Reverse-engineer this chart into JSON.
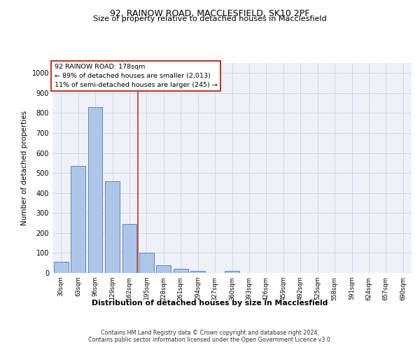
{
  "title_line1": "92, RAINOW ROAD, MACCLESFIELD, SK10 2PF",
  "title_line2": "Size of property relative to detached houses in Macclesfield",
  "xlabel": "Distribution of detached houses by size in Macclesfield",
  "ylabel": "Number of detached properties",
  "footnote1": "Contains HM Land Registry data © Crown copyright and database right 2024.",
  "footnote2": "Contains public sector information licensed under the Open Government Licence v3.0.",
  "annotation_line1": "92 RAINOW ROAD: 178sqm",
  "annotation_line2": "← 89% of detached houses are smaller (2,013)",
  "annotation_line3": "11% of semi-detached houses are larger (245) →",
  "bar_color": "#aec6e8",
  "bar_edge_color": "#4a7ab5",
  "vline_color": "#c0392b",
  "annotation_box_color": "#c0392b",
  "grid_color": "#d0d8e8",
  "background_color": "#eef2f8",
  "categories": [
    "30sqm",
    "63sqm",
    "96sqm",
    "129sqm",
    "162sqm",
    "195sqm",
    "228sqm",
    "261sqm",
    "294sqm",
    "327sqm",
    "360sqm",
    "393sqm",
    "426sqm",
    "459sqm",
    "492sqm",
    "525sqm",
    "558sqm",
    "591sqm",
    "624sqm",
    "657sqm",
    "690sqm"
  ],
  "values": [
    55,
    535,
    830,
    460,
    245,
    100,
    40,
    22,
    10,
    0,
    12,
    0,
    0,
    0,
    0,
    0,
    0,
    0,
    0,
    0,
    0
  ],
  "ylim": [
    0,
    1050
  ],
  "yticks": [
    0,
    100,
    200,
    300,
    400,
    500,
    600,
    700,
    800,
    900,
    1000
  ],
  "vline_position": 4.5,
  "bar_width": 0.85
}
